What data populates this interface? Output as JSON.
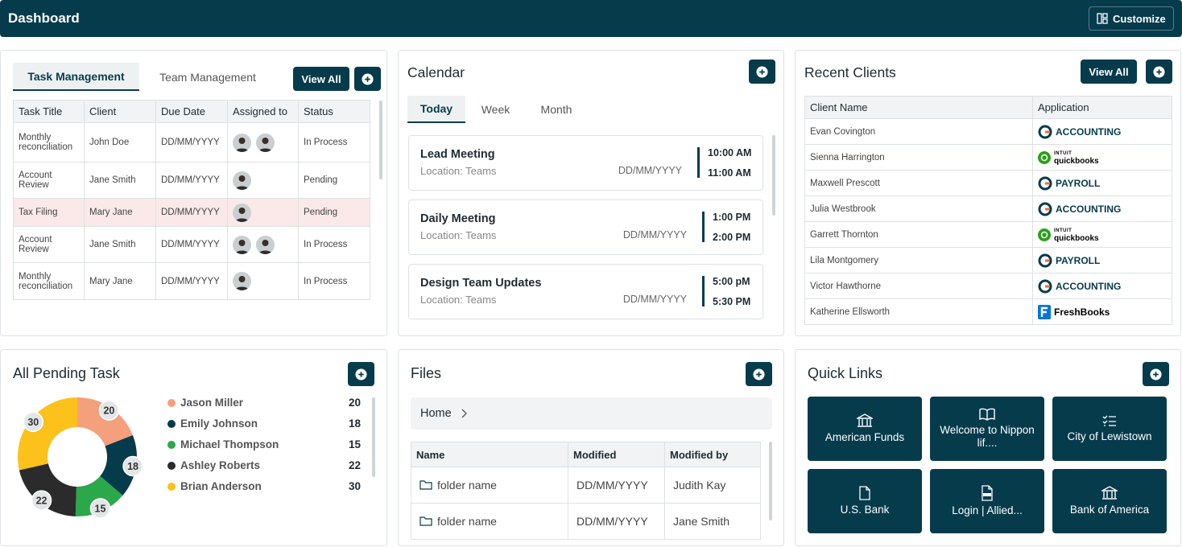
{
  "header": {
    "title": "Dashboard",
    "customize": "Customize"
  },
  "tasks": {
    "tabs": [
      "Task Management",
      "Team Management"
    ],
    "view_all": "View All",
    "columns": [
      "Task Title",
      "Client",
      "Due Date",
      "Assigned to",
      "Status"
    ],
    "rows": [
      [
        "Monthly reconciliation",
        "John Doe",
        "DD/MM/YYYY",
        "In Process"
      ],
      [
        "Account Review",
        "Jane Smith",
        "DD/MM/YYYY",
        "Pending"
      ],
      [
        "Tax Filing",
        "Mary Jane",
        "DD/MM/YYYY",
        "Pending"
      ],
      [
        "Account Review",
        "Jane Smith",
        "DD/MM/YYYY",
        "In Process"
      ],
      [
        "Monthly reconciliation",
        "Mary Jane",
        "DD/MM/YYYY",
        "In Process"
      ]
    ]
  },
  "calendar": {
    "title": "Calendar",
    "tabs": [
      "Today",
      "Week",
      "Month"
    ],
    "events": [
      {
        "title": "Lead Meeting",
        "location": "Location: Teams",
        "date": "DD/MM/YYYY",
        "start": "10:00 AM",
        "end": "11:00 AM"
      },
      {
        "title": "Daily Meeting",
        "location": "Location: Teams",
        "date": "DD/MM/YYYY",
        "start": "1:00 PM",
        "end": "2:00 PM"
      },
      {
        "title": "Design Team Updates",
        "location": "Location: Teams",
        "date": "DD/MM/YYYY",
        "start": "5:00 pM",
        "end": "5:30 PM"
      }
    ]
  },
  "clients": {
    "title": "Recent Clients",
    "view_all": "View All",
    "columns": [
      "Client Name",
      "Application"
    ],
    "rows": [
      {
        "name": "Evan Covington",
        "app": {
          "label": "ACCOUNTING"
        }
      },
      {
        "name": "Sienna Harrington",
        "app": {
          "brand": "INTUIT",
          "label": "quickbooks"
        }
      },
      {
        "name": "Maxwell Prescott",
        "app": {
          "label": "PAYROLL"
        }
      },
      {
        "name": "Julia Westbrook",
        "app": {
          "label": "ACCOUNTING"
        }
      },
      {
        "name": "Garrett Thornton",
        "app": {
          "brand": "INTUIT",
          "label": "quickbooks"
        }
      },
      {
        "name": "Lila Montgomery",
        "app": {
          "label": "PAYROLL"
        }
      },
      {
        "name": "Victor Hawthorne",
        "app": {
          "label": "ACCOUNTING"
        }
      },
      {
        "name": "Katherine Ellsworth",
        "app": {
          "label": "FreshBooks"
        }
      }
    ]
  },
  "chart_data": {
    "type": "donut",
    "title": "All Pending Task",
    "categories": [
      "Jason Miller",
      "Emily Johnson",
      "Michael Thompson",
      "Ashley Roberts",
      "Brian Anderson"
    ],
    "values": [
      20,
      18,
      15,
      22,
      30
    ],
    "colors": [
      "#f4a07c",
      "#063b4c",
      "#2aa84a",
      "#2b2b2b",
      "#fcc11a"
    ]
  },
  "files": {
    "title": "Files",
    "breadcrumb": "Home",
    "columns": [
      "Name",
      "Modified",
      "Modified by"
    ],
    "rows": [
      [
        "folder name",
        "DD/MM/YYYY",
        "Judith Kay"
      ],
      [
        "folder name",
        "DD/MM/YYYY",
        "Jane Smith"
      ]
    ]
  },
  "quick_links": {
    "title": "Quick Links",
    "links": [
      "American Funds",
      "Welcome to Nippon lif....",
      "City of Lewistown",
      "U.S. Bank",
      "Login | Allied...",
      "Bank of America"
    ]
  }
}
